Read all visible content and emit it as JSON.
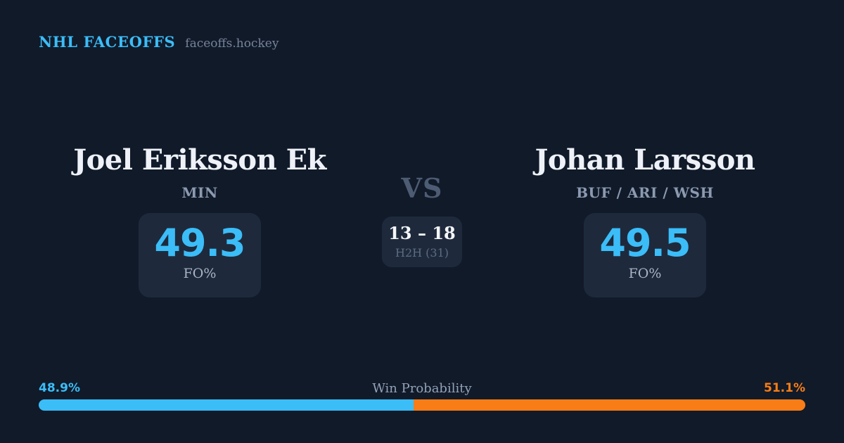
{
  "header": {
    "brand": "NHL FACEOFFS",
    "site": "faceoffs.hockey"
  },
  "left_player": {
    "name": "Joel Eriksson Ek",
    "teams": "MIN",
    "value": "49.3",
    "value_label": "FO%"
  },
  "right_player": {
    "name": "Johan Larsson",
    "teams": "BUF / ARI / WSH",
    "value": "49.5",
    "value_label": "FO%"
  },
  "matchup": {
    "vs_label": "VS",
    "h2h_score": "13 – 18",
    "h2h_label": "H2H (31)"
  },
  "win_probability": {
    "label": "Win Probability",
    "left_pct_text": "48.9%",
    "right_pct_text": "51.1%",
    "left_value": 48.9,
    "right_value": 51.1
  },
  "colors": {
    "background": "#111a29",
    "card": "#1e2a3c",
    "accent_blue": "#3bbdf8",
    "accent_orange": "#f97d16",
    "name_white": "#eef2f8",
    "muted_slate": "#8b9ab0",
    "vs_slate": "#4d5c73"
  },
  "chart_data": {
    "type": "bar",
    "title": "Win Probability",
    "categories": [
      "Joel Eriksson Ek (MIN)",
      "Johan Larsson (BUF / ARI / WSH)"
    ],
    "series": [
      {
        "name": "Win Probability %",
        "values": [
          48.9,
          51.1
        ]
      },
      {
        "name": "Faceoff Win % (FO%)",
        "values": [
          49.3,
          49.5
        ]
      },
      {
        "name": "Head-to-Head faceoff wins (31 total)",
        "values": [
          13,
          18
        ]
      }
    ],
    "legend_position": "none",
    "grid": false,
    "colors": [
      "#3bbdf8",
      "#f97d16"
    ]
  }
}
